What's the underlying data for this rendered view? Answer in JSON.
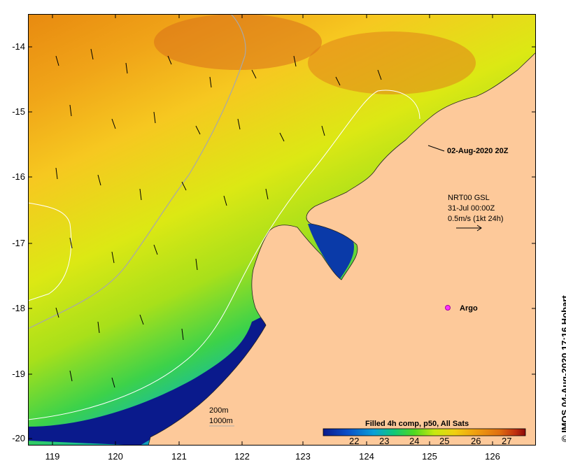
{
  "axes": {
    "x_ticks": [
      "119",
      "120",
      "121",
      "122",
      "123",
      "124",
      "125",
      "126"
    ],
    "y_ticks": [
      "-14",
      "-15",
      "-16",
      "-17",
      "-18",
      "-19",
      "-20"
    ]
  },
  "annotations": {
    "timestamp_label": "02-Aug-2020 20Z",
    "current_product": "NRT00 GSL",
    "current_time": "31-Jul 00:00Z",
    "current_scale": "0.5m/s (1kt 24h)",
    "argo_label": "Argo"
  },
  "contour_legend": {
    "depth1": "200m",
    "depth2": "1000m"
  },
  "colorbar": {
    "title": "Filled 4h comp, p50, All Sats",
    "labels": [
      "22",
      "23",
      "24",
      "25",
      "26",
      "27"
    ],
    "colors": [
      "#0a1a8c",
      "#0a4fc8",
      "#0aa0d8",
      "#10c878",
      "#50d820",
      "#c8e810",
      "#f0d010",
      "#f0a010",
      "#e07010",
      "#c03010",
      "#8c0a0a"
    ]
  },
  "credit": "© IMOS 04-Aug-2020 17:16 Hobart"
}
